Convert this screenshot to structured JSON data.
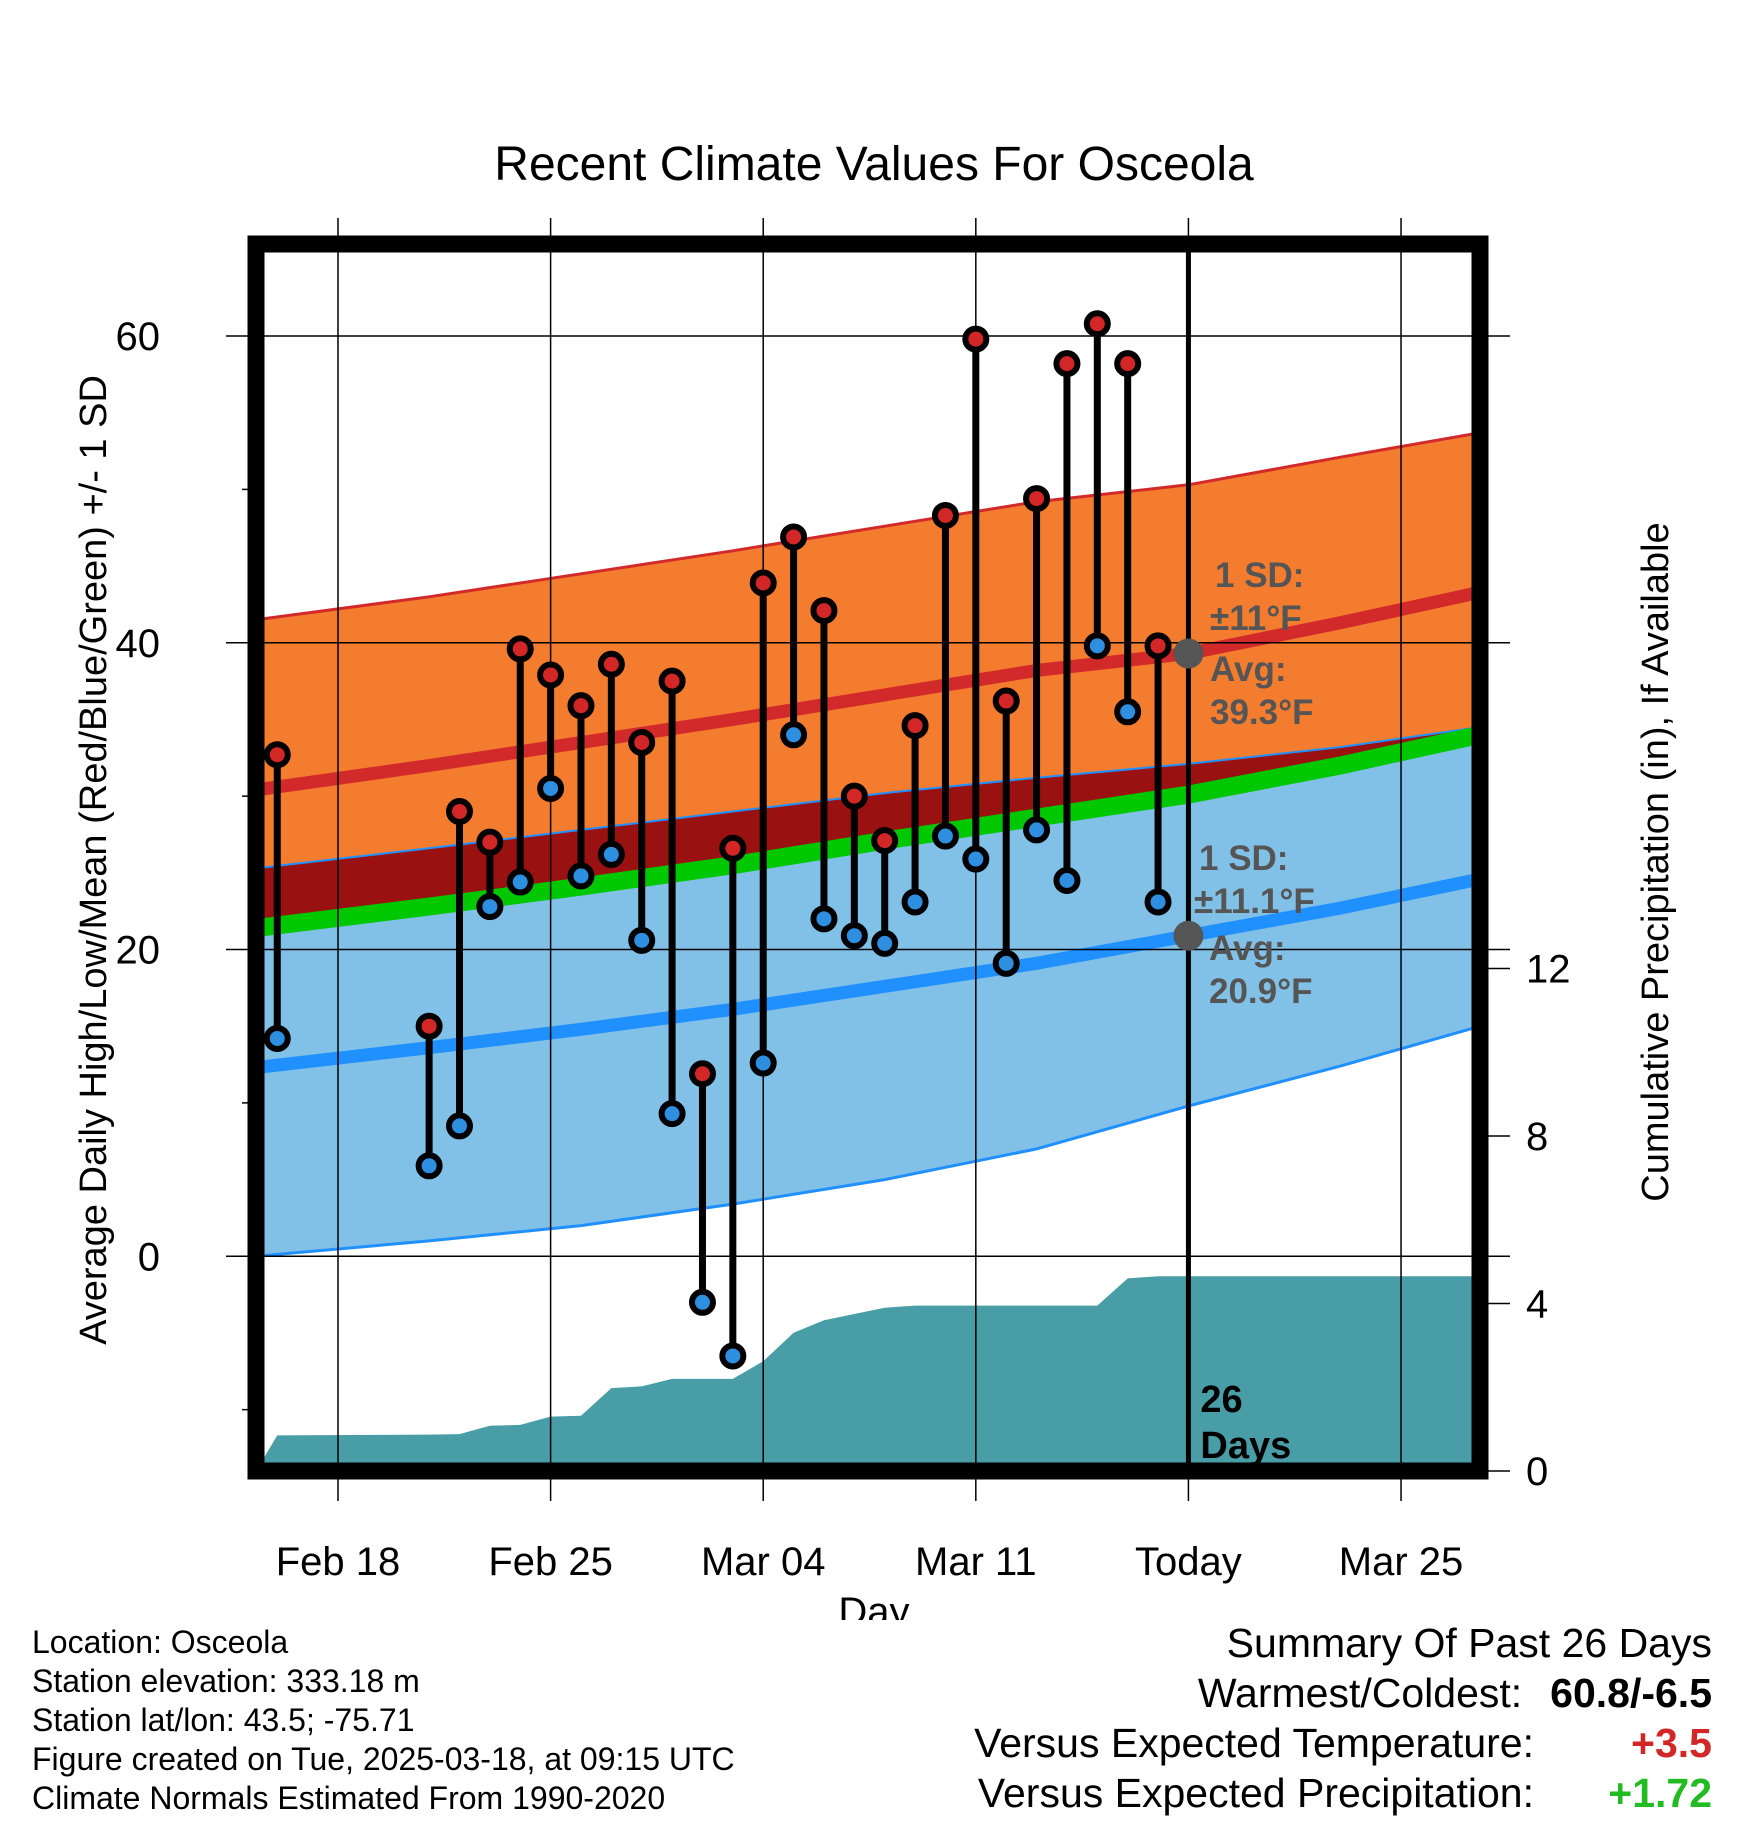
{
  "chart_data": {
    "type": "line",
    "title": "Recent Climate Values For Osceola",
    "xlabel": "Day",
    "ylabel": "Average Daily High/Low/Mean (Red/Blue/Green) +/- 1 SD",
    "y2label": "Cumulative Precipitation (in), If Available",
    "x_ticks": [
      "Feb 18",
      "Feb 25",
      "Mar 04",
      "Mar 11",
      "Today",
      "Mar 25"
    ],
    "x_tick_days": [
      2,
      9,
      16,
      23,
      30,
      37
    ],
    "xlim": [
      -0.7,
      39.6
    ],
    "ylim": [
      -14,
      66
    ],
    "y_ticks": [
      0,
      20,
      40,
      60
    ],
    "y_minor_ticks": [
      -10,
      10,
      30,
      50
    ],
    "y2lim": [
      0,
      29.3
    ],
    "y2_ticks": [
      0,
      4,
      8,
      12
    ],
    "grid": true,
    "normals": {
      "days": [
        -0.7,
        5,
        10,
        15,
        20,
        25,
        30,
        35,
        39.6
      ],
      "high_mean": [
        30.4,
        32.0,
        33.5,
        35.0,
        36.6,
        38.2,
        39.3,
        41.3,
        43.3
      ],
      "high_upper": [
        41.5,
        43.0,
        44.5,
        46.0,
        47.6,
        49.2,
        50.3,
        52.1,
        53.7
      ],
      "high_lower": [
        25.3,
        26.6,
        27.8,
        29.0,
        30.2,
        31.2,
        32.1,
        33.2,
        34.5
      ],
      "low_mean": [
        12.3,
        13.6,
        14.8,
        16.1,
        17.6,
        19.1,
        20.9,
        22.7,
        24.6
      ],
      "low_upper": [
        25.3,
        26.6,
        27.8,
        29.0,
        30.2,
        31.2,
        32.1,
        33.2,
        34.5
      ],
      "low_lower": [
        0,
        1.0,
        2.0,
        3.4,
        5.0,
        7.0,
        9.8,
        12.4,
        15.0
      ],
      "mean_mean": [
        21.4,
        22.8,
        24.1,
        25.5,
        27.1,
        28.6,
        30.1,
        32.0,
        34.0
      ],
      "high_sd_label": "1 SD:",
      "high_sd_value": "±11°F",
      "high_avg_label": "Avg:",
      "high_avg_value": "39.3°F",
      "low_sd_label": "1 SD:",
      "low_sd_value": "±11.1°F",
      "low_avg_label": "Avg:",
      "low_avg_value": "20.9°F"
    },
    "series": [
      {
        "name": "Observed High/Low",
        "days": [
          0,
          5,
          6,
          7,
          8,
          9,
          10,
          11,
          12,
          13,
          14,
          15,
          16,
          17,
          18,
          19,
          20,
          21,
          22,
          23,
          24,
          25,
          26,
          27,
          28,
          29
        ],
        "highs": [
          32.7,
          15.0,
          29.0,
          27.0,
          39.6,
          37.9,
          35.9,
          38.6,
          33.5,
          37.5,
          11.9,
          26.6,
          43.9,
          46.9,
          42.1,
          30.0,
          27.1,
          34.6,
          48.3,
          59.8,
          36.2,
          49.4,
          58.2,
          60.8,
          58.2,
          39.8
        ],
        "lows": [
          14.2,
          5.9,
          8.5,
          22.8,
          24.4,
          30.5,
          24.8,
          26.2,
          20.6,
          9.3,
          -3.0,
          -6.5,
          12.6,
          34.0,
          22.0,
          20.9,
          20.4,
          23.1,
          27.4,
          25.9,
          19.1,
          27.8,
          24.5,
          39.8,
          35.5,
          23.1
        ]
      },
      {
        "name": "Cumulative Precipitation",
        "days": [
          -0.7,
          0,
          5,
          6,
          7,
          8,
          9,
          10,
          11,
          12,
          13,
          14,
          15,
          16,
          17,
          18,
          19,
          20,
          21,
          22,
          23,
          24,
          25,
          26,
          27,
          28,
          29,
          30,
          39.6
        ],
        "values": [
          0.0,
          0.85,
          0.87,
          0.88,
          1.08,
          1.1,
          1.3,
          1.32,
          1.98,
          2.02,
          2.2,
          2.2,
          2.2,
          2.62,
          3.3,
          3.6,
          3.75,
          3.9,
          3.95,
          3.95,
          3.95,
          3.95,
          3.95,
          3.95,
          3.95,
          4.6,
          4.65,
          4.65,
          4.65
        ]
      }
    ],
    "today_day": 30,
    "today_label_num": "26",
    "today_label_unit": "Days",
    "colors": {
      "high_band": "#f47c2e",
      "high_line": "#d22a2a",
      "low_band": "#82c1e7",
      "low_line": "#2090ff",
      "overlap": "#9a1111",
      "mean_line": "#00c800",
      "precip": "#489da6",
      "high_dot": "#d32626",
      "low_dot": "#2e8ee0",
      "avg_dot": "#555555",
      "anno_text": "#555555"
    }
  },
  "info": {
    "location": "Location: Osceola",
    "elevation": "Station elevation: 333.18 m",
    "latlon": "Station lat/lon: 43.5; -75.71",
    "created": "Figure created on Tue, 2025-03-18, at 09:15 UTC",
    "normals": "Climate Normals Estimated From 1990-2020"
  },
  "summary": {
    "title": "Summary Of Past 26 Days",
    "warmest_label": "Warmest/Coldest:",
    "warmest_value": "60.8/-6.5",
    "temp_label": "Versus Expected Temperature:",
    "temp_value": "+3.5",
    "temp_color": "#d32626",
    "precip_label": "Versus Expected Precipitation:",
    "precip_value": "+1.72",
    "precip_color": "#22bb22"
  }
}
